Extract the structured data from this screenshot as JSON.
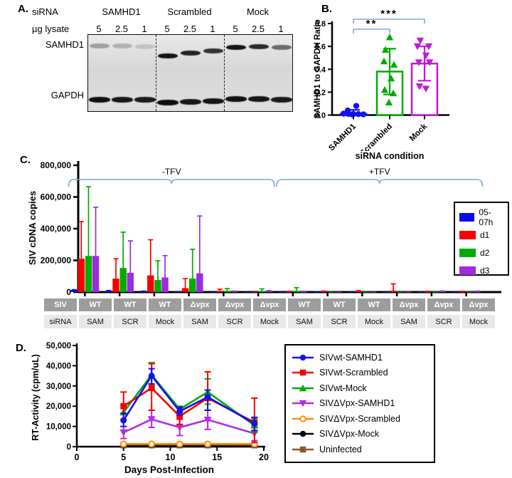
{
  "panels": {
    "a": "A.",
    "b": "B.",
    "c": "C.",
    "d": "D."
  },
  "panel_a": {
    "sirna_label": "siRNA",
    "groups": [
      "SAMHD1",
      "Scrambled",
      "Mock"
    ],
    "lysate_label": "µg lysate",
    "lane_amounts": [
      "5",
      "2.5",
      "1",
      "5",
      "2.5",
      "1",
      "5",
      "2.5",
      "1"
    ],
    "band_rows": [
      "SAMHD1",
      "GAPDH"
    ],
    "samhd1_band_intensity": [
      0.3,
      0.22,
      0.14,
      0.95,
      0.88,
      0.8,
      0.95,
      0.85,
      0.55
    ],
    "samhd1_band_dy": [
      2,
      2,
      3,
      16,
      12,
      9,
      4,
      3,
      4
    ],
    "gapdh_band_intensity": [
      0.97,
      0.93,
      0.92,
      0.98,
      0.93,
      0.94,
      0.96,
      0.94,
      0.92
    ],
    "gapdh_band_dy": [
      5,
      5,
      5,
      9,
      8,
      7,
      4,
      4,
      5
    ]
  },
  "chart_data": [
    {
      "id": "panel_b",
      "type": "bar",
      "ylabel": "SAMHD1 to GAPDH Ratio",
      "xlabel": "siRNA condition",
      "ylim": [
        0,
        0.8
      ],
      "yticks": [
        0,
        0.2,
        0.4,
        0.6,
        0.8
      ],
      "ytick_labels": [
        "0.0",
        "0.2",
        "0.4",
        "0.6",
        "0.8"
      ],
      "categories": [
        "SAMHD1",
        "Scrambled",
        "Mock"
      ],
      "bar_means": [
        0.01,
        0.38,
        0.45
      ],
      "error_bars": [
        [
          0.0,
          0.045
        ],
        [
          0.18,
          0.58
        ],
        [
          0.3,
          0.6
        ]
      ],
      "points": [
        [
          0.08,
          0.04,
          0.012,
          0.01,
          0.008,
          0.008,
          0.006,
          0.005
        ],
        [
          0.68,
          0.57,
          0.47,
          0.44,
          0.32,
          0.22,
          0.19,
          0.11
        ],
        [
          0.65,
          0.6,
          0.6,
          0.52,
          0.46,
          0.46,
          0.25,
          0.23
        ]
      ],
      "colors": [
        "#1212EE",
        "#00AC00",
        "#C318DC"
      ],
      "markers": [
        "circle",
        "triangle-up",
        "triangle-down"
      ],
      "significance": [
        {
          "from": 0,
          "to": 1,
          "label": "**"
        },
        {
          "from": 0,
          "to": 2,
          "label": "***"
        }
      ],
      "bracket_color": "#7DA7DC"
    },
    {
      "id": "panel_c",
      "type": "grouped-bar",
      "ylabel": "SIV cDNA copies",
      "ylim": [
        0,
        800000
      ],
      "yticks": [
        0,
        200000,
        400000,
        600000,
        800000
      ],
      "ytick_labels": [
        "0",
        "200,000",
        "400,000",
        "600,000",
        "800,000"
      ],
      "categories": [
        "WT-SAM",
        "WT-SCR",
        "WT-Mock",
        "Δvpx-SAM",
        "Δvpx-SCR",
        "Δvpx-Mock",
        "WT-SAM",
        "WT-SCR",
        "WT-Mock",
        "Δvpx-SAM",
        "Δvpx-SCR",
        "Δvpx-Mock"
      ],
      "condition_brackets": [
        {
          "label": "-TFV",
          "from": 0,
          "to": 5
        },
        {
          "label": "+TFV",
          "from": 6,
          "to": 11
        }
      ],
      "bracket_color": "#7DA7DC",
      "series": [
        {
          "name": "05-07h",
          "color": "#0B0BEF",
          "values": [
            12000,
            8000,
            4000,
            3000,
            2000,
            1500,
            2000,
            5000,
            2500,
            2000,
            4000,
            3000
          ],
          "err_hi": [
            15000,
            10000,
            6000,
            4000,
            3000,
            2000,
            3000,
            6500,
            3500,
            3000,
            5000,
            4000
          ]
        },
        {
          "name": "d1",
          "color": "#F80000",
          "values": [
            210000,
            85000,
            105000,
            25000,
            8000,
            2500,
            3000,
            4000,
            6000,
            9000,
            3000,
            3000
          ],
          "err_hi": [
            445000,
            210000,
            330000,
            85000,
            18000,
            4000,
            5000,
            6000,
            9000,
            52000,
            5000,
            5000
          ]
        },
        {
          "name": "d2",
          "color": "#00AC00",
          "values": [
            228000,
            152000,
            76000,
            85000,
            8000,
            6000,
            8000,
            2500,
            2500,
            2500,
            2500,
            2500
          ],
          "err_hi": [
            665000,
            378000,
            197000,
            270000,
            22000,
            20000,
            28000,
            4000,
            4000,
            4000,
            4000,
            4000
          ]
        },
        {
          "name": "d3",
          "color": "#9E2BE0",
          "values": [
            228000,
            122000,
            92000,
            118000,
            4000,
            5000,
            3000,
            2500,
            2500,
            3000,
            4500,
            3500
          ],
          "err_hi": [
            535000,
            323000,
            230000,
            480000,
            6000,
            9000,
            5000,
            4000,
            4000,
            4500,
            7000,
            6000
          ]
        }
      ]
    },
    {
      "id": "panel_d",
      "type": "line",
      "ylabel": "RT-Activity (cpm/uL)",
      "xlabel": "Days Post-Infection",
      "xlim": [
        0,
        20
      ],
      "ylim": [
        0,
        50000
      ],
      "xticks": [
        0,
        5,
        10,
        15,
        20
      ],
      "yticks": [
        0,
        10000,
        20000,
        30000,
        40000,
        50000
      ],
      "ytick_labels": [
        "0",
        "10,000",
        "20,000",
        "30,000",
        "40,000",
        "50,000"
      ],
      "x": [
        5,
        8,
        11,
        14,
        19
      ],
      "series": [
        {
          "name": "SIVwt-SAMHD1",
          "color": "#1212EE",
          "marker": "circle",
          "values": [
            13000,
            35000,
            17500,
            24500,
            11500
          ],
          "err_lo": [
            10000,
            31000,
            15500,
            18000,
            8000
          ],
          "err_hi": [
            16500,
            38500,
            19500,
            28000,
            14500
          ]
        },
        {
          "name": "SIVwt-Scrambled",
          "color": "#F80000",
          "marker": "square",
          "values": [
            20000,
            29000,
            15000,
            24000,
            12000
          ],
          "err_lo": [
            13000,
            18000,
            11000,
            18000,
            2000
          ],
          "err_hi": [
            27000,
            41000,
            19000,
            37000,
            24000
          ]
        },
        {
          "name": "SIVwt-Mock",
          "color": "#00AC00",
          "marker": "triangle-up",
          "values": [
            17000,
            35500,
            18500,
            27000,
            10500
          ],
          "err_lo": [
            13500,
            30000,
            17000,
            21000,
            7000
          ],
          "err_hi": [
            20500,
            41500,
            20000,
            33500,
            14000
          ]
        },
        {
          "name": "SIVΔVpx-SAMHD1",
          "color": "#B02CDF",
          "marker": "triangle-down",
          "values": [
            7000,
            13500,
            9500,
            13300,
            6500
          ],
          "err_lo": [
            4000,
            9500,
            5500,
            8500,
            3000
          ],
          "err_hi": [
            10000,
            18000,
            13500,
            18000,
            10000
          ]
        },
        {
          "name": "SIVΔVpx-Scrambled",
          "color": "#FF8C00",
          "marker": "open-circle",
          "values": [
            1300,
            1300,
            1300,
            1300,
            1300
          ],
          "err_lo": [
            1300,
            1300,
            1300,
            1300,
            1300
          ],
          "err_hi": [
            1300,
            1300,
            1300,
            1300,
            1300
          ]
        },
        {
          "name": "SIVΔVpx-Mock",
          "color": "#000000",
          "marker": "circle",
          "values": [
            900,
            900,
            900,
            900,
            1000
          ],
          "err_lo": [
            900,
            900,
            900,
            900,
            1000
          ],
          "err_hi": [
            900,
            900,
            900,
            900,
            1000
          ]
        },
        {
          "name": "Uninfected",
          "color": "#8B5A2B",
          "marker": "square",
          "values": [
            700,
            700,
            700,
            700,
            700
          ],
          "err_lo": [
            700,
            700,
            700,
            700,
            700
          ],
          "err_hi": [
            700,
            700,
            700,
            700,
            700
          ]
        }
      ]
    }
  ],
  "panel_c_table": {
    "rows": [
      [
        "SIV",
        "WT",
        "WT",
        "WT",
        "Δvpx",
        "Δvpx",
        "Δvpx",
        "WT",
        "WT",
        "WT",
        "Δvpx",
        "Δvpx",
        "Δvpx"
      ],
      [
        "siRNA",
        "SAM",
        "SCR",
        "Mock",
        "SAM",
        "SCR",
        "Mock",
        "SAM",
        "SCR",
        "Mock",
        "SAM",
        "SCR",
        "Mock"
      ]
    ]
  }
}
